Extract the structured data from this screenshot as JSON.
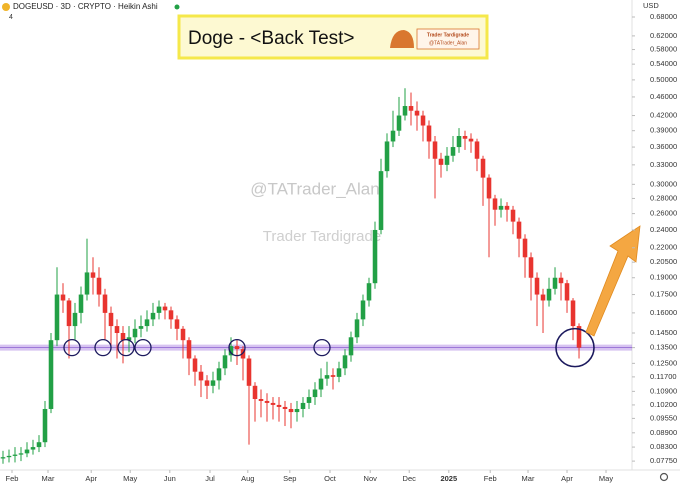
{
  "chart_data": {
    "type": "candlestick",
    "title": "DOGEUSD · 3D · CRYPTO · Heikin Ashi",
    "badge": "4",
    "annotation_title": "Doge - <Back Test>",
    "logo_lines": [
      "Trader Tardigrade",
      "@TATrader_Alan"
    ],
    "watermarks": [
      "@TATrader_Alan",
      "Trader Tardigrade"
    ],
    "currency": "USD",
    "up_color": "#22a046",
    "down_color": "#e8342f",
    "support": 0.135,
    "support_color": "#a77be0",
    "log_scale": true,
    "xlim": [
      -0.5,
      104.83
    ],
    "xticks": [
      {
        "value": 1.5,
        "label": "Feb"
      },
      {
        "value": 7.5,
        "label": "Mar"
      },
      {
        "value": 14.7,
        "label": "Apr"
      },
      {
        "value": 21.2,
        "label": "May"
      },
      {
        "value": 27.8,
        "label": "Jun"
      },
      {
        "value": 34.5,
        "label": "Jul"
      },
      {
        "value": 40.8,
        "label": "Aug"
      },
      {
        "value": 47.8,
        "label": "Sep"
      },
      {
        "value": 54.5,
        "label": "Oct"
      },
      {
        "value": 61.2,
        "label": "Nov"
      },
      {
        "value": 67.7,
        "label": "Dec"
      },
      {
        "value": 74.3,
        "label": "2025"
      },
      {
        "value": 81.2,
        "label": "Feb"
      },
      {
        "value": 87.5,
        "label": "Mar"
      },
      {
        "value": 94,
        "label": "Apr"
      },
      {
        "value": 100.5,
        "label": "May"
      }
    ],
    "ylim": [
      0.0742,
      0.739
    ],
    "yticks": [
      {
        "value": 0.0775,
        "label": "0.07750"
      },
      {
        "value": 0.083,
        "label": "0.08300"
      },
      {
        "value": 0.089,
        "label": "0.08900"
      },
      {
        "value": 0.0955,
        "label": "0.09550"
      },
      {
        "value": 0.102,
        "label": "0.10200"
      },
      {
        "value": 0.109,
        "label": "0.10900"
      },
      {
        "value": 0.117,
        "label": "0.11700"
      },
      {
        "value": 0.125,
        "label": "0.12500"
      },
      {
        "value": 0.135,
        "label": "0.13500"
      },
      {
        "value": 0.145,
        "label": "0.14500"
      },
      {
        "value": 0.16,
        "label": "0.16000"
      },
      {
        "value": 0.175,
        "label": "0.17500"
      },
      {
        "value": 0.19,
        "label": "0.19000"
      },
      {
        "value": 0.205,
        "label": "0.20500"
      },
      {
        "value": 0.22,
        "label": "0.22000"
      },
      {
        "value": 0.24,
        "label": "0.24000"
      },
      {
        "value": 0.26,
        "label": "0.26000"
      },
      {
        "value": 0.28,
        "label": "0.28000"
      },
      {
        "value": 0.3,
        "label": "0.30000"
      },
      {
        "value": 0.33,
        "label": "0.33000"
      },
      {
        "value": 0.36,
        "label": "0.36000"
      },
      {
        "value": 0.39,
        "label": "0.39000"
      },
      {
        "value": 0.42,
        "label": "0.42000"
      },
      {
        "value": 0.46,
        "label": "0.46000"
      },
      {
        "value": 0.5,
        "label": "0.50000"
      },
      {
        "value": 0.54,
        "label": "0.54000"
      },
      {
        "value": 0.58,
        "label": "0.58000"
      },
      {
        "value": 0.62,
        "label": "0.62000"
      },
      {
        "value": 0.68,
        "label": "0.68000"
      }
    ],
    "open": [
      0.0785,
      0.079,
      0.0795,
      0.08,
      0.0805,
      0.082,
      0.083,
      0.085,
      0.1,
      0.14,
      0.175,
      0.17,
      0.15,
      0.16,
      0.175,
      0.195,
      0.19,
      0.175,
      0.16,
      0.15,
      0.145,
      0.14,
      0.142,
      0.148,
      0.15,
      0.155,
      0.16,
      0.165,
      0.162,
      0.155,
      0.148,
      0.14,
      0.128,
      0.12,
      0.115,
      0.112,
      0.115,
      0.122,
      0.13,
      0.136,
      0.134,
      0.128,
      0.112,
      0.105,
      0.104,
      0.103,
      0.102,
      0.101,
      0.1,
      0.0985,
      0.1,
      0.103,
      0.106,
      0.11,
      0.116,
      0.118,
      0.117,
      0.122,
      0.13,
      0.142,
      0.155,
      0.17,
      0.185,
      0.24,
      0.32,
      0.37,
      0.39,
      0.42,
      0.44,
      0.43,
      0.42,
      0.4,
      0.37,
      0.34,
      0.33,
      0.345,
      0.36,
      0.38,
      0.375,
      0.37,
      0.34,
      0.31,
      0.28,
      0.265,
      0.27,
      0.265,
      0.25,
      0.23,
      0.21,
      0.19,
      0.175,
      0.17,
      0.18,
      0.19,
      0.185,
      0.17,
      0.15
    ],
    "high": [
      0.0815,
      0.082,
      0.083,
      0.083,
      0.085,
      0.086,
      0.088,
      0.104,
      0.145,
      0.2,
      0.185,
      0.172,
      0.168,
      0.182,
      0.23,
      0.21,
      0.2,
      0.18,
      0.165,
      0.155,
      0.15,
      0.15,
      0.155,
      0.158,
      0.162,
      0.168,
      0.17,
      0.168,
      0.165,
      0.158,
      0.15,
      0.142,
      0.13,
      0.124,
      0.118,
      0.12,
      0.126,
      0.134,
      0.142,
      0.14,
      0.136,
      0.13,
      0.114,
      0.11,
      0.108,
      0.106,
      0.106,
      0.104,
      0.103,
      0.104,
      0.106,
      0.11,
      0.114,
      0.122,
      0.126,
      0.122,
      0.126,
      0.134,
      0.146,
      0.16,
      0.175,
      0.19,
      0.25,
      0.34,
      0.385,
      0.43,
      0.46,
      0.48,
      0.47,
      0.45,
      0.43,
      0.41,
      0.38,
      0.35,
      0.36,
      0.38,
      0.395,
      0.39,
      0.385,
      0.375,
      0.345,
      0.315,
      0.285,
      0.28,
      0.275,
      0.27,
      0.255,
      0.235,
      0.215,
      0.195,
      0.18,
      0.19,
      0.2,
      0.195,
      0.188,
      0.172,
      0.152
    ],
    "low": [
      0.0765,
      0.077,
      0.077,
      0.0775,
      0.079,
      0.08,
      0.081,
      0.083,
      0.098,
      0.136,
      0.16,
      0.128,
      0.14,
      0.152,
      0.17,
      0.175,
      0.165,
      0.14,
      0.135,
      0.128,
      0.125,
      0.132,
      0.138,
      0.142,
      0.146,
      0.15,
      0.155,
      0.155,
      0.148,
      0.14,
      0.128,
      0.118,
      0.112,
      0.106,
      0.105,
      0.108,
      0.11,
      0.118,
      0.126,
      0.124,
      0.115,
      0.084,
      0.094,
      0.096,
      0.094,
      0.095,
      0.094,
      0.092,
      0.091,
      0.094,
      0.096,
      0.1,
      0.102,
      0.106,
      0.112,
      0.11,
      0.114,
      0.118,
      0.126,
      0.138,
      0.15,
      0.165,
      0.18,
      0.235,
      0.31,
      0.36,
      0.38,
      0.41,
      0.4,
      0.39,
      0.37,
      0.34,
      0.28,
      0.31,
      0.32,
      0.335,
      0.35,
      0.355,
      0.35,
      0.32,
      0.27,
      0.21,
      0.245,
      0.255,
      0.25,
      0.235,
      0.21,
      0.19,
      0.17,
      0.15,
      0.145,
      0.165,
      0.175,
      0.17,
      0.16,
      0.14,
      0.128
    ],
    "close": [
      0.079,
      0.0795,
      0.08,
      0.0805,
      0.082,
      0.083,
      0.085,
      0.1,
      0.14,
      0.175,
      0.17,
      0.15,
      0.16,
      0.175,
      0.195,
      0.19,
      0.175,
      0.16,
      0.15,
      0.145,
      0.14,
      0.142,
      0.148,
      0.15,
      0.155,
      0.16,
      0.165,
      0.162,
      0.155,
      0.148,
      0.14,
      0.128,
      0.12,
      0.115,
      0.112,
      0.115,
      0.122,
      0.13,
      0.136,
      0.134,
      0.128,
      0.112,
      0.105,
      0.104,
      0.103,
      0.102,
      0.101,
      0.1,
      0.0985,
      0.1,
      0.103,
      0.106,
      0.11,
      0.116,
      0.118,
      0.117,
      0.122,
      0.13,
      0.142,
      0.155,
      0.17,
      0.185,
      0.24,
      0.32,
      0.37,
      0.39,
      0.42,
      0.44,
      0.43,
      0.42,
      0.4,
      0.37,
      0.34,
      0.33,
      0.345,
      0.36,
      0.38,
      0.375,
      0.37,
      0.34,
      0.31,
      0.28,
      0.265,
      0.27,
      0.265,
      0.25,
      0.23,
      0.21,
      0.19,
      0.175,
      0.17,
      0.18,
      0.19,
      0.185,
      0.17,
      0.15,
      0.135
    ]
  }
}
